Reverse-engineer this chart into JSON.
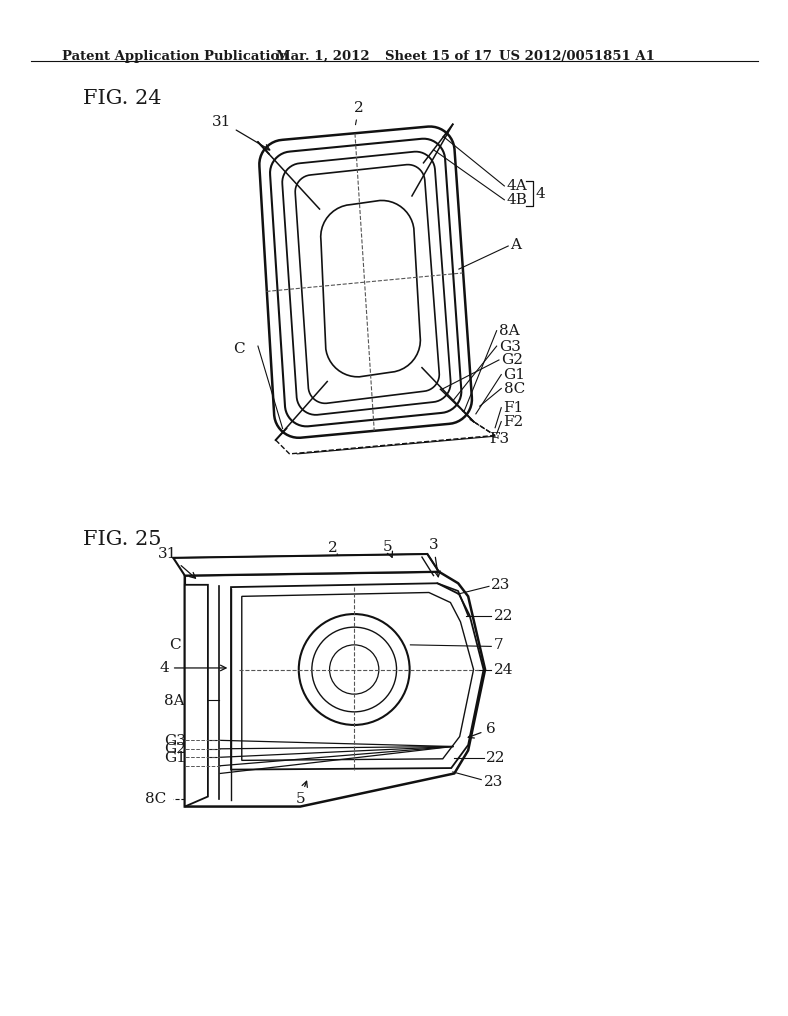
{
  "background_color": "#ffffff",
  "header_text": "Patent Application Publication",
  "header_date": "Mar. 1, 2012",
  "header_sheet": "Sheet 15 of 17",
  "header_patent": "US 2012/0051851 A1",
  "fig24_label": "FIG. 24",
  "fig25_label": "FIG. 25",
  "text_color": "#1a1a1a",
  "line_color": "#111111",
  "dashed_color": "#555555"
}
